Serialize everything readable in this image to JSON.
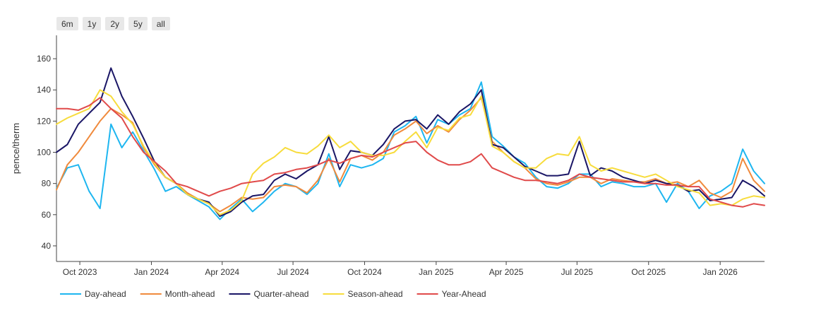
{
  "range_buttons": [
    "6m",
    "1y",
    "2y",
    "5y",
    "all"
  ],
  "chart_data": {
    "type": "line",
    "title": "",
    "xlabel": "",
    "ylabel": "pence/therm",
    "ylim": [
      30,
      175
    ],
    "yticks": [
      40,
      60,
      80,
      100,
      120,
      140,
      160
    ],
    "xlim": [
      "2023-09-01",
      "2026-02-27"
    ],
    "xticks": [
      {
        "date": "2023-10-01",
        "label": "Oct 2023"
      },
      {
        "date": "2024-01-01",
        "label": "Jan 2024"
      },
      {
        "date": "2024-04-01",
        "label": "Apr 2024"
      },
      {
        "date": "2024-07-01",
        "label": "Jul 2024"
      },
      {
        "date": "2024-10-01",
        "label": "Oct 2024"
      },
      {
        "date": "2025-01-01",
        "label": "Jan 2025"
      },
      {
        "date": "2025-04-01",
        "label": "Apr 2025"
      },
      {
        "date": "2025-07-01",
        "label": "Jul 2025"
      },
      {
        "date": "2025-10-01",
        "label": "Oct 2025"
      },
      {
        "date": "2026-01-01",
        "label": "Jan 2026"
      }
    ],
    "grid": false,
    "legend": "bottom",
    "x": [
      "2023-09-01",
      "2023-09-15",
      "2023-09-29",
      "2023-10-13",
      "2023-10-27",
      "2023-11-10",
      "2023-11-24",
      "2023-12-08",
      "2023-12-22",
      "2024-01-05",
      "2024-01-19",
      "2024-02-02",
      "2024-02-16",
      "2024-03-01",
      "2024-03-15",
      "2024-03-29",
      "2024-04-12",
      "2024-04-26",
      "2024-05-10",
      "2024-05-24",
      "2024-06-07",
      "2024-06-21",
      "2024-07-05",
      "2024-07-19",
      "2024-08-02",
      "2024-08-16",
      "2024-08-30",
      "2024-09-13",
      "2024-09-27",
      "2024-10-11",
      "2024-10-25",
      "2024-11-08",
      "2024-11-22",
      "2024-12-06",
      "2024-12-20",
      "2025-01-03",
      "2025-01-17",
      "2025-01-31",
      "2025-02-14",
      "2025-02-28",
      "2025-03-14",
      "2025-03-28",
      "2025-04-11",
      "2025-04-25",
      "2025-05-09",
      "2025-05-23",
      "2025-06-06",
      "2025-06-20",
      "2025-07-04",
      "2025-07-18",
      "2025-08-01",
      "2025-08-15",
      "2025-08-29",
      "2025-09-12",
      "2025-09-26",
      "2025-10-10",
      "2025-10-24",
      "2025-11-07",
      "2025-11-21",
      "2025-12-05",
      "2025-12-19",
      "2026-01-02",
      "2026-01-16",
      "2026-01-30",
      "2026-02-13",
      "2026-02-27"
    ],
    "series": [
      {
        "name": "Day-ahead",
        "color": "#1eb6f0",
        "values": [
          77,
          90,
          92,
          75,
          64,
          118,
          103,
          113,
          101,
          89,
          75,
          78,
          73,
          69,
          65,
          57,
          64,
          70,
          62,
          68,
          75,
          80,
          78,
          73,
          80,
          99,
          78,
          92,
          90,
          92,
          96,
          113,
          117,
          123,
          106,
          121,
          118,
          124,
          128,
          145,
          110,
          104,
          97,
          93,
          84,
          78,
          77,
          80,
          86,
          86,
          78,
          81,
          80,
          78,
          78,
          80,
          68,
          80,
          75,
          64,
          72,
          75,
          80,
          102,
          88,
          80
        ]
      },
      {
        "name": "Month-ahead",
        "color": "#f08a3c",
        "values": [
          76,
          92,
          100,
          110,
          120,
          128,
          124,
          119,
          103,
          92,
          84,
          80,
          74,
          70,
          67,
          62,
          66,
          71,
          70,
          71,
          78,
          79,
          78,
          74,
          82,
          96,
          81,
          96,
          98,
          95,
          100,
          111,
          115,
          120,
          112,
          117,
          113,
          121,
          127,
          135,
          107,
          100,
          94,
          90,
          83,
          80,
          79,
          81,
          84,
          84,
          80,
          83,
          82,
          81,
          81,
          83,
          80,
          81,
          78,
          82,
          74,
          71,
          75,
          96,
          82,
          75
        ]
      },
      {
        "name": "Quarter-ahead",
        "color": "#1a1666",
        "values": [
          100,
          105,
          118,
          125,
          132,
          154,
          136,
          123,
          109,
          94,
          84,
          80,
          73,
          70,
          68,
          59,
          62,
          68,
          72,
          73,
          82,
          86,
          83,
          88,
          92,
          110,
          89,
          101,
          100,
          98,
          105,
          115,
          120,
          121,
          115,
          124,
          118,
          126,
          131,
          140,
          105,
          103,
          97,
          91,
          88,
          85,
          85,
          86,
          107,
          85,
          90,
          88,
          84,
          82,
          80,
          82,
          80,
          79,
          75,
          76,
          69,
          70,
          71,
          82,
          78,
          72
        ]
      },
      {
        "name": "Season-ahead",
        "color": "#f7dc3c",
        "values": [
          118,
          122,
          125,
          128,
          140,
          136,
          126,
          118,
          104,
          93,
          84,
          80,
          73,
          70,
          67,
          60,
          63,
          69,
          86,
          93,
          97,
          103,
          100,
          99,
          104,
          111,
          103,
          107,
          100,
          98,
          98,
          100,
          107,
          113,
          103,
          116,
          114,
          122,
          124,
          136,
          104,
          100,
          94,
          90,
          90,
          96,
          99,
          98,
          110,
          92,
          88,
          90,
          88,
          86,
          84,
          86,
          82,
          78,
          76,
          74,
          66,
          67,
          66,
          70,
          72,
          71
        ]
      },
      {
        "name": "Year-Ahead",
        "color": "#e04a4a",
        "values": [
          128,
          128,
          127,
          130,
          135,
          128,
          122,
          110,
          100,
          94,
          88,
          80,
          78,
          75,
          72,
          75,
          77,
          80,
          81,
          82,
          86,
          87,
          89,
          90,
          92,
          95,
          93,
          96,
          98,
          97,
          100,
          103,
          106,
          107,
          100,
          95,
          92,
          92,
          94,
          99,
          90,
          87,
          84,
          82,
          82,
          81,
          80,
          82,
          86,
          84,
          83,
          82,
          81,
          81,
          80,
          80,
          79,
          79,
          78,
          78,
          70,
          68,
          66,
          65,
          67,
          66
        ]
      }
    ]
  }
}
